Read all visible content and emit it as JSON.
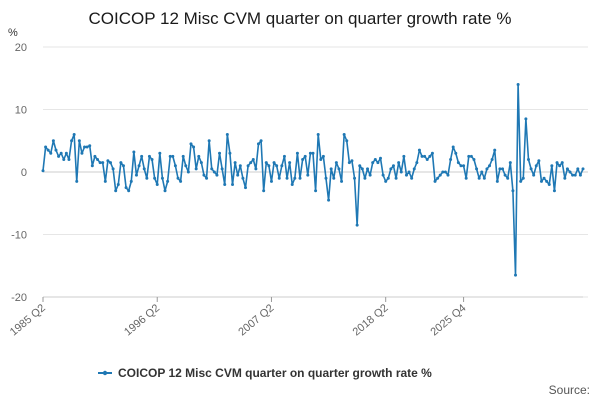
{
  "chart_data": {
    "type": "line",
    "title": "COICOP 12 Misc CVM quarter on quarter growth rate %",
    "ylabel": "%",
    "xlabel": "",
    "ylim": [
      -20,
      20
    ],
    "yticks": [
      -20,
      -10,
      0,
      10,
      20
    ],
    "x_start": "1985 Q2",
    "x_end": "2025 Q4",
    "xtick_labels": [
      "1985 Q2",
      "1996 Q2",
      "2007 Q2",
      "2018 Q2",
      "2025 Q4"
    ],
    "grid": true,
    "legend_position": "bottom",
    "source_label": "Source:",
    "color": "#1f78b4",
    "series": [
      {
        "name": "COICOP 12 Misc CVM quarter on quarter growth rate %",
        "values": [
          0.2,
          4.0,
          3.5,
          3.0,
          5.0,
          3.5,
          2.5,
          3.0,
          2.0,
          3.0,
          2.0,
          5.0,
          6.0,
          -1.5,
          5.0,
          3.0,
          4.0,
          4.0,
          4.2,
          1.0,
          2.5,
          2.0,
          1.5,
          1.5,
          -1.5,
          1.8,
          1.5,
          0.5,
          -3.0,
          -2.0,
          1.5,
          1.0,
          -2.5,
          -3.0,
          -1.5,
          3.2,
          -0.5,
          1.0,
          2.5,
          0.5,
          -1.0,
          2.5,
          2.0,
          -1.0,
          -2.0,
          3.0,
          -1.0,
          -3.0,
          -1.5,
          2.5,
          2.5,
          1.0,
          -1.0,
          -1.5,
          2.5,
          1.0,
          0.0,
          4.5,
          4.0,
          0.5,
          2.5,
          1.5,
          -0.5,
          -1.0,
          5.0,
          0.5,
          0.0,
          -0.5,
          3.0,
          0.5,
          -2.0,
          6.0,
          3.0,
          -2.0,
          1.5,
          -0.5,
          1.0,
          -1.0,
          -2.5,
          1.0,
          1.5,
          2.0,
          0.5,
          4.5,
          5.0,
          -3.0,
          1.5,
          1.0,
          -1.5,
          1.5,
          1.0,
          -1.0,
          1.0,
          2.5,
          -1.0,
          1.5,
          -2.0,
          -1.0,
          3.0,
          -1.0,
          2.0,
          2.5,
          -0.5,
          3.0,
          3.0,
          -3.0,
          6.0,
          2.0,
          2.5,
          -1.0,
          -4.5,
          0.5,
          -1.0,
          1.5,
          0.5,
          -1.5,
          6.0,
          5.0,
          1.5,
          1.8,
          -1.0,
          -8.5,
          1.0,
          0.5,
          -1.0,
          0.5,
          -0.5,
          1.5,
          2.0,
          1.5,
          2.2,
          -0.5,
          -1.5,
          -1.0,
          0.5,
          1.0,
          -1.0,
          1.5,
          0.0,
          2.5,
          -0.5,
          0.0,
          -1.0,
          0.5,
          1.5,
          3.5,
          2.5,
          2.5,
          2.0,
          2.5,
          3.0,
          -1.5,
          -1.0,
          -0.5,
          0.0,
          0.0,
          -0.5,
          2.0,
          4.0,
          3.0,
          1.5,
          1.0,
          1.0,
          -1.0,
          2.5,
          2.5,
          2.0,
          0.5,
          -1.0,
          0.0,
          -1.0,
          0.5,
          1.0,
          2.0,
          3.5,
          -1.5,
          0.5,
          0.5,
          -0.5,
          -1.0,
          1.5,
          -3.0,
          -16.5,
          14.0,
          -1.5,
          -1.0,
          8.5,
          2.0,
          0.5,
          -0.5,
          1.0,
          1.8,
          -1.5,
          -1.0,
          -1.5,
          -2.0,
          1.0,
          -3.0,
          1.5,
          1.0,
          1.5,
          -1.0,
          0.5,
          0.0,
          -0.5,
          -0.5,
          0.5,
          -0.5,
          0.5
        ]
      }
    ]
  }
}
